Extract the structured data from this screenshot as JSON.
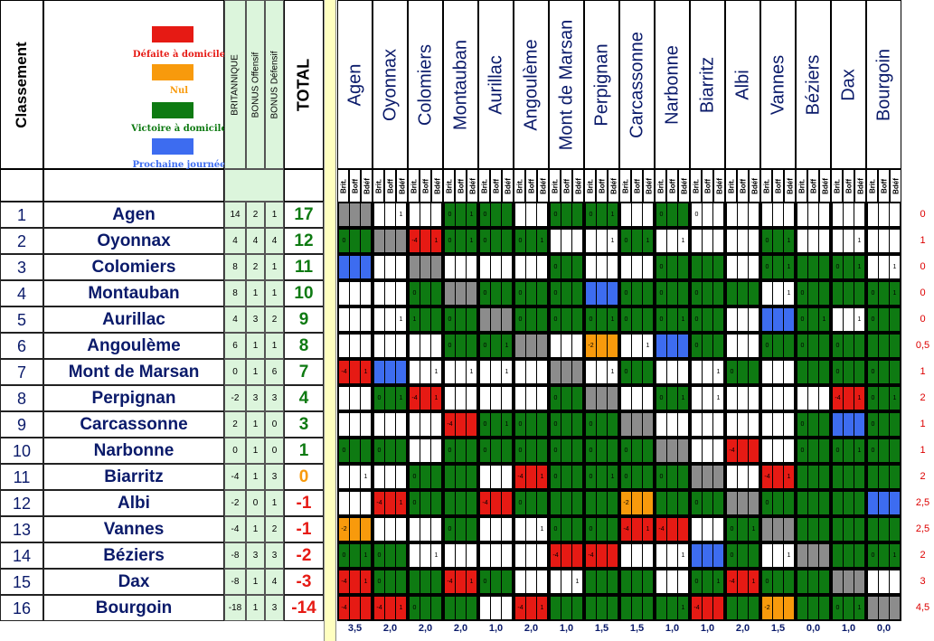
{
  "title": "Classement",
  "legend": [
    {
      "label": "Défaite à domicile",
      "color": "#e61a14",
      "name": "home-loss-legend"
    },
    {
      "label": "Nul",
      "color": "#f89a0c",
      "name": "draw-legend"
    },
    {
      "label": "Victoire à domicile",
      "color": "#0e7a12",
      "name": "home-win-legend"
    },
    {
      "label": "Prochaine journée",
      "color": "#3d6cf0",
      "name": "next-round-legend"
    }
  ],
  "headers": {
    "brit": "BRITANNIQUE",
    "boff": "BONUS Offensif",
    "bdef": "BONUS Défensif",
    "total": "TOTAL"
  },
  "sub_headers": [
    "Brit.",
    "Boff",
    "Bdéf"
  ],
  "teams": [
    "Agen",
    "Oyonnax",
    "Colomiers",
    "Montauban",
    "Aurillac",
    "Angoulème",
    "Mont de Marsan",
    "Perpignan",
    "Carcassonne",
    "Narbonne",
    "Biarritz",
    "Albi",
    "Vannes",
    "Béziers",
    "Dax",
    "Bourgoin"
  ],
  "rows": [
    {
      "rank": "1",
      "team": "Agen",
      "brit": "14",
      "boff": "2",
      "bdef": "1",
      "total": "17",
      "penalty": "0"
    },
    {
      "rank": "2",
      "team": "Oyonnax",
      "brit": "4",
      "boff": "4",
      "bdef": "4",
      "total": "12",
      "penalty": "1"
    },
    {
      "rank": "3",
      "team": "Colomiers",
      "brit": "8",
      "boff": "2",
      "bdef": "1",
      "total": "11",
      "penalty": "0"
    },
    {
      "rank": "4",
      "team": "Montauban",
      "brit": "8",
      "boff": "1",
      "bdef": "1",
      "total": "10",
      "penalty": "0"
    },
    {
      "rank": "5",
      "team": "Aurillac",
      "brit": "4",
      "boff": "3",
      "bdef": "2",
      "total": "9",
      "penalty": "0"
    },
    {
      "rank": "6",
      "team": "Angoulème",
      "brit": "6",
      "boff": "1",
      "bdef": "1",
      "total": "8",
      "penalty": "0,5"
    },
    {
      "rank": "7",
      "team": "Mont de Marsan",
      "brit": "0",
      "boff": "1",
      "bdef": "6",
      "total": "7",
      "penalty": "1"
    },
    {
      "rank": "8",
      "team": "Perpignan",
      "brit": "-2",
      "boff": "3",
      "bdef": "3",
      "total": "4",
      "penalty": "2"
    },
    {
      "rank": "9",
      "team": "Carcassonne",
      "brit": "2",
      "boff": "1",
      "bdef": "0",
      "total": "3",
      "penalty": "1"
    },
    {
      "rank": "10",
      "team": "Narbonne",
      "brit": "0",
      "boff": "1",
      "bdef": "0",
      "total": "1",
      "penalty": "1"
    },
    {
      "rank": "11",
      "team": "Biarritz",
      "brit": "-4",
      "boff": "1",
      "bdef": "3",
      "total": "0",
      "penalty": "2"
    },
    {
      "rank": "12",
      "team": "Albi",
      "brit": "-2",
      "boff": "0",
      "bdef": "1",
      "total": "-1",
      "penalty": "2,5"
    },
    {
      "rank": "13",
      "team": "Vannes",
      "brit": "-4",
      "boff": "1",
      "bdef": "2",
      "total": "-1",
      "penalty": "2,5"
    },
    {
      "rank": "14",
      "team": "Béziers",
      "brit": "-8",
      "boff": "3",
      "bdef": "3",
      "total": "-2",
      "penalty": "2"
    },
    {
      "rank": "15",
      "team": "Dax",
      "brit": "-8",
      "boff": "1",
      "bdef": "4",
      "total": "-3",
      "penalty": "3"
    },
    {
      "rank": "16",
      "team": "Bourgoin",
      "brit": "-18",
      "boff": "1",
      "bdef": "3",
      "total": "-14",
      "penalty": "4,5"
    }
  ],
  "matrix": [
    "X,W,W,G,G,W,G,G,W,G,W,W,W,W,W,W",
    "G,X,R,G,G,G,W,W,G,W,W,W,G,W,W,W",
    "B,W,X,W,W,W,G,W,W,G,G,W,G,G,G,W",
    "W,W,G,X,G,G,G,B,G,G,G,G,W,G,G,G",
    "W,W,G,G,X,G,G,G,G,G,G,W,B,G,W,G",
    "W,W,W,G,G,X,W,O,W,B,G,W,G,G,G,G",
    "R,B,W,W,W,W,X,W,G,W,W,G,W,G,G,G",
    "W,G,R,W,W,W,G,X,W,G,W,W,W,W,R,G",
    "W,W,W,R,G,G,G,G,X,W,W,W,W,G,B,G",
    "G,G,W,G,G,G,G,G,G,X,W,R,W,G,G,G",
    "W,W,G,G,W,R,G,G,G,G,X,W,R,G,G,G",
    "W,R,G,G,R,G,G,G,O,G,G,X,G,G,G,B",
    "O,W,W,G,W,W,G,G,R,R,W,G,X,G,G,G",
    "G,G,W,W,W,W,R,R,W,W,B,G,W,X,G,G",
    "R,G,G,R,G,W,W,G,G,W,G,R,G,G,X,W",
    "R,R,G,G,W,R,G,G,G,G,R,G,O,G,G,X"
  ],
  "matrix_vals": [
    [
      "",
      "|1",
      "",
      "0|1",
      "0|",
      "",
      "0|",
      "0|1",
      "",
      "0|",
      "0|",
      "",
      "",
      "",
      "",
      ""
    ],
    [
      "0|",
      "",
      "-4|1",
      "0|1",
      "0|",
      "0|1",
      "",
      "|1",
      "0|1",
      "|1",
      "",
      "",
      "0|1",
      "",
      "|1",
      ""
    ],
    [
      "",
      "",
      "",
      "",
      "",
      "",
      "0|",
      "",
      "",
      "0|",
      "",
      "",
      "0|1",
      "",
      "0|1",
      "|1"
    ],
    [
      "",
      "",
      "0|",
      "",
      "0|",
      "0|",
      "0|",
      "",
      "0|",
      "0|",
      "0|",
      "",
      "|1",
      "0|",
      "",
      "0|1"
    ],
    [
      "",
      "|1",
      "1|",
      "0|",
      "",
      "0|",
      "0|",
      "0|1",
      "0|",
      "0|1",
      "0|",
      "",
      "",
      "0|1",
      "|1",
      "0|"
    ],
    [
      "",
      "",
      "",
      "0|",
      "0|1",
      "",
      "",
      "-2|",
      "|1",
      "",
      "0|",
      "",
      "0|",
      "0|",
      "0|",
      ""
    ],
    [
      "-4|1",
      "",
      "|1",
      "|1",
      "|1",
      "",
      "",
      "|1",
      "0|",
      "",
      "|1",
      "0|",
      "",
      "",
      "0|",
      "0|"
    ],
    [
      "",
      "0|1",
      "-4|1",
      "",
      "",
      "",
      "0|",
      "",
      "",
      "0|1",
      "|1",
      "",
      "",
      "",
      "-4|1",
      "0|1"
    ],
    [
      "",
      "",
      "",
      "-4|",
      "0|1",
      "0|",
      "0|",
      "0|",
      "",
      "",
      "",
      "",
      "",
      "0|",
      "",
      "0|"
    ],
    [
      "0|",
      "0|",
      "",
      "0|",
      "0|",
      "0|",
      "0|",
      "0|",
      "0|",
      "",
      "",
      "-4|",
      "",
      "0|",
      "0|1",
      "0|"
    ],
    [
      "|1",
      "",
      "0|",
      "",
      "",
      "-4|1",
      "0|",
      "0|1",
      "0|",
      "0|",
      "",
      "",
      "-4|1",
      "",
      "",
      ""
    ],
    [
      "",
      "-4|1",
      "0|",
      "",
      "-4|",
      "0|",
      "",
      "",
      "-2|",
      "",
      "0|",
      "",
      "0|",
      "",
      "",
      ""
    ],
    [
      "-2|",
      "",
      "",
      "0|",
      "",
      "|1",
      "0|",
      "0|",
      "-4|1",
      "-4|",
      "",
      "0|1",
      "",
      "",
      "",
      ""
    ],
    [
      "0|1",
      "0|",
      "|1",
      "",
      "",
      "",
      "-4|",
      "-4|",
      "",
      "|1",
      "",
      "0|",
      "|1",
      "",
      "",
      "0|1"
    ],
    [
      "-4|1",
      "0|",
      "",
      "-4|1",
      "0|",
      "",
      "|1",
      "",
      "",
      "",
      "0|1",
      "-4|1",
      "0|",
      "",
      "",
      ""
    ],
    [
      "-4|",
      "-4|1",
      "0|",
      "",
      "",
      "-4|1",
      "",
      "",
      "",
      "|1",
      "-4|",
      "",
      "-2|",
      "",
      "0|1",
      ""
    ]
  ],
  "footer": [
    "3,5",
    "2,0",
    "2,0",
    "2,0",
    "1,0",
    "2,0",
    "1,0",
    "1,5",
    "1,5",
    "1,0",
    "1,0",
    "2,0",
    "1,5",
    "0,0",
    "1,0",
    "0,0"
  ]
}
